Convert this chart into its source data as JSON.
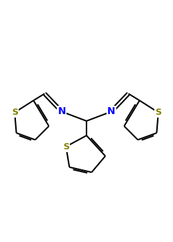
{
  "bg_color": "#ffffff",
  "bond_color": "#000000",
  "sulfur_color": "#808000",
  "nitrogen_color": "#0000ff",
  "lw": 1.5,
  "figsize": [
    2.5,
    3.5
  ],
  "dpi": 100,
  "xlim": [
    0,
    10
  ],
  "ylim": [
    0,
    14
  ]
}
